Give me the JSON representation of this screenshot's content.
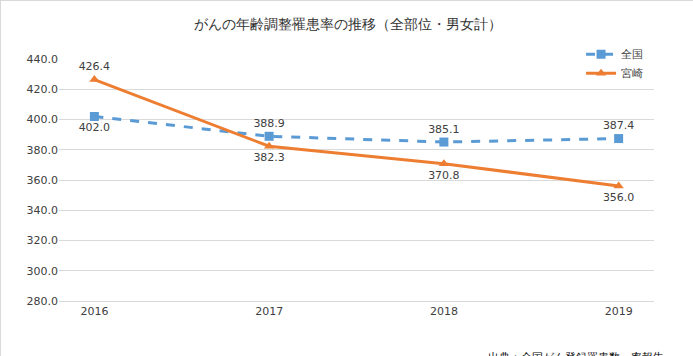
{
  "chart_data": {
    "type": "line",
    "title": "がんの年齢調整罹患率の推移（全部位・男女計）",
    "annotations": [
      "出典：全国がん登録罹患数・率報告"
    ],
    "categories": [
      "2016",
      "2017",
      "2018",
      "2019"
    ],
    "series": [
      {
        "name": "全国",
        "color": "#5b9bd5",
        "marker": "square",
        "line_style": "dash",
        "values": [
          402.0,
          388.9,
          385.1,
          387.4
        ],
        "value_labels": [
          "402.0",
          "388.9",
          "385.1",
          "387.4"
        ]
      },
      {
        "name": "宮崎",
        "color": "#ed7d31",
        "marker": "triangle",
        "line_style": "solid",
        "values": [
          426.4,
          382.3,
          370.8,
          356.0
        ],
        "value_labels": [
          "426.4",
          "382.3",
          "370.8",
          "356.0"
        ]
      }
    ],
    "ylim": [
      280,
      440
    ],
    "yticks": [
      {
        "value": 280,
        "label": "280.0"
      },
      {
        "value": 300,
        "label": "300.0"
      },
      {
        "value": 320,
        "label": "320.0"
      },
      {
        "value": 340,
        "label": "340.0"
      },
      {
        "value": 360,
        "label": "360.0"
      },
      {
        "value": 380,
        "label": "380.0"
      },
      {
        "value": 400,
        "label": "400.0"
      },
      {
        "value": 420,
        "label": "420.0"
      },
      {
        "value": 440,
        "label": "440.0"
      }
    ],
    "grid": true,
    "legend": "upper right",
    "data_labels": true
  }
}
